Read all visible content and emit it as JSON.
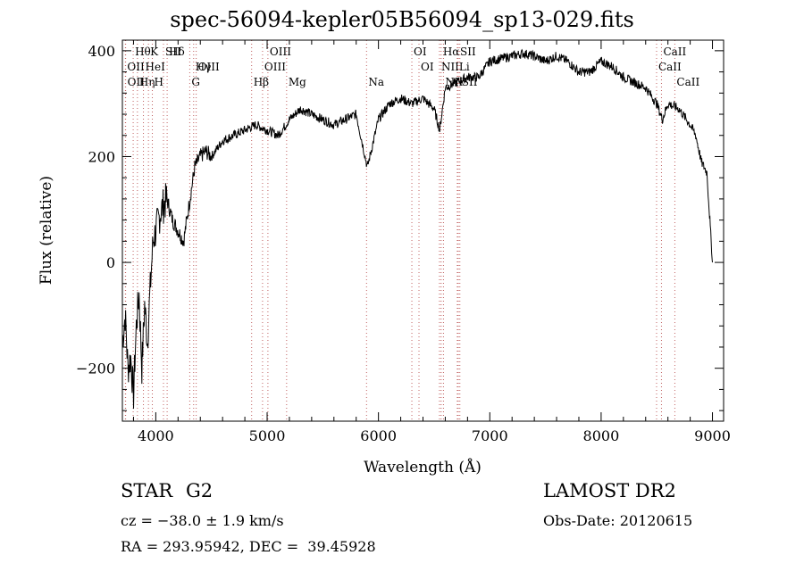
{
  "chart_data": {
    "type": "line",
    "title": "spec-56094-kepler05B56094_sp13-029.fits",
    "xlabel": "Wavelength (Å)",
    "ylabel": "Flux (relative)",
    "xlim": [
      3700,
      9100
    ],
    "ylim": [
      -300,
      420
    ],
    "x_ticks": [
      4000,
      5000,
      6000,
      7000,
      8000,
      9000
    ],
    "y_ticks": [
      -200,
      0,
      200,
      400
    ],
    "series": [
      {
        "x": [
          3700,
          3725,
          3750,
          3775,
          3800,
          3825,
          3850,
          3875,
          3900,
          3925,
          3950,
          3975,
          4000,
          4050,
          4100,
          4150,
          4200,
          4250,
          4300,
          4350,
          4400,
          4450,
          4500,
          4600,
          4700,
          4800,
          4900,
          5000,
          5100,
          5200,
          5300,
          5400,
          5500,
          5600,
          5700,
          5800,
          5900,
          6000,
          6100,
          6200,
          6300,
          6400,
          6500,
          6550,
          6600,
          6700,
          6800,
          6900,
          7000,
          7100,
          7200,
          7300,
          7400,
          7500,
          7600,
          7700,
          7800,
          7900,
          8000,
          8100,
          8200,
          8300,
          8400,
          8500,
          8550,
          8600,
          8700,
          8800,
          8850,
          8900,
          8950,
          9000
        ],
        "y": [
          -150,
          -100,
          -200,
          -180,
          -250,
          -120,
          -60,
          -200,
          -80,
          -150,
          -50,
          40,
          60,
          100,
          120,
          80,
          60,
          40,
          110,
          180,
          200,
          210,
          200,
          230,
          240,
          250,
          260,
          250,
          240,
          270,
          290,
          280,
          270,
          260,
          270,
          280,
          180,
          270,
          300,
          310,
          300,
          310,
          290,
          250,
          330,
          340,
          350,
          350,
          380,
          385,
          390,
          395,
          390,
          380,
          390,
          380,
          360,
          360,
          380,
          370,
          350,
          340,
          330,
          300,
          270,
          300,
          290,
          260,
          240,
          190,
          170,
          0
        ]
      }
    ],
    "lines_top": [
      {
        "label": "Hθ",
        "x": 3797
      },
      {
        "label": "K",
        "x": 3934
      },
      {
        "label": "Hδ",
        "x": 4102
      },
      {
        "label": "OIII",
        "x": 4363
      },
      {
        "label": "Hγ",
        "x": 4340
      },
      {
        "label": "G",
        "x": 4305
      },
      {
        "label": "OIII",
        "x": 5007
      },
      {
        "label": "OIII",
        "x": 4959
      },
      {
        "label": "Hβ",
        "x": 4861
      },
      {
        "label": "Mg",
        "x": 5175
      },
      {
        "label": "Na",
        "x": 5893
      },
      {
        "label": "OI",
        "x": 6300
      },
      {
        "label": "OI",
        "x": 6364
      },
      {
        "label": "Hα",
        "x": 6563
      },
      {
        "label": "SII",
        "x": 6717
      },
      {
        "label": "NII",
        "x": 6548
      },
      {
        "label": "Li",
        "x": 6708
      },
      {
        "label": "NII",
        "x": 6584
      },
      {
        "label": "SII",
        "x": 6731
      },
      {
        "label": "CaII",
        "x": 8542
      },
      {
        "label": "CaII",
        "x": 8498
      },
      {
        "label": "CaII",
        "x": 8662
      },
      {
        "label": "OII",
        "x": 3727
      },
      {
        "label": "HeI",
        "x": 3889
      },
      {
        "label": "SII",
        "x": 4069
      },
      {
        "label": "OII",
        "x": 3729
      },
      {
        "label": "Hη",
        "x": 3835
      },
      {
        "label": "H",
        "x": 3969
      }
    ]
  },
  "info": {
    "object_type": "STAR",
    "subclass": "G2",
    "survey": "LAMOST DR2",
    "cz": "cz = −38.0 ± 1.9 km/s",
    "obs_date": "Obs-Date: 20120615",
    "radec": "RA = 293.95942, DEC =  39.45928"
  }
}
